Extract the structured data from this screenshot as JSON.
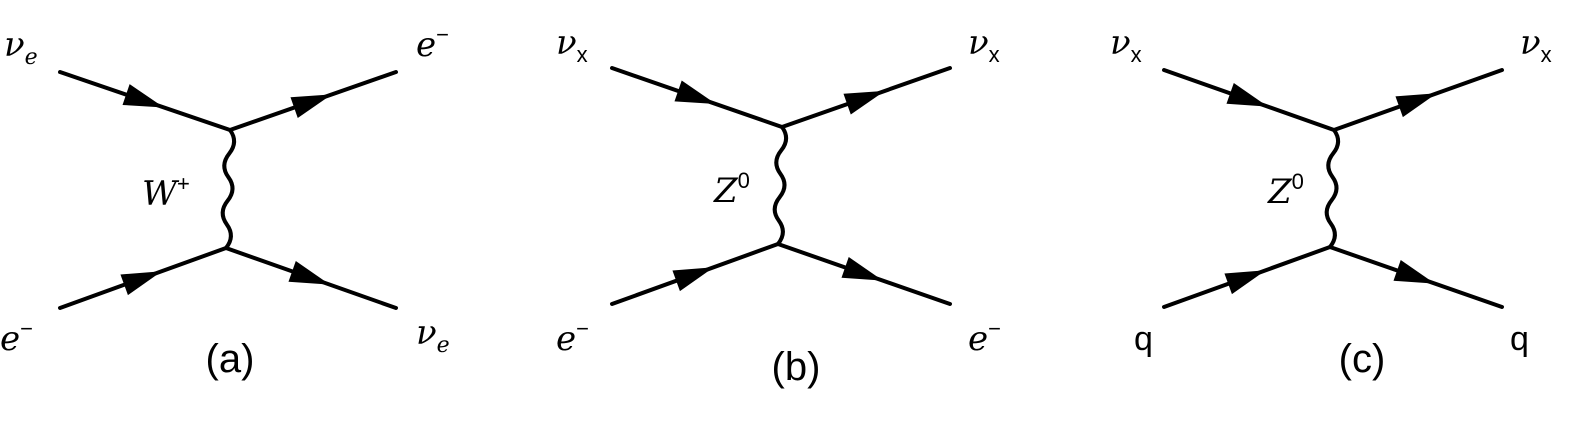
{
  "diagrams": [
    {
      "caption": "(a)",
      "boson": {
        "base": "W",
        "sup": "+"
      },
      "labels": {
        "top_left": {
          "base": "ν",
          "sub": "e",
          "sub_style": "italic"
        },
        "top_right": {
          "base": "e",
          "sup": "−"
        },
        "bottom_left": {
          "base": "e",
          "sup": "−"
        },
        "bottom_right": {
          "base": "ν",
          "sub": "e",
          "sub_style": "italic"
        }
      }
    },
    {
      "caption": "(b)",
      "boson": {
        "base": "Z",
        "sup": "0"
      },
      "labels": {
        "top_left": {
          "base": "ν",
          "sub": "x",
          "sub_style": "upright"
        },
        "top_right": {
          "base": "ν",
          "sub": "x",
          "sub_style": "upright"
        },
        "bottom_left": {
          "base": "e",
          "sup": "−"
        },
        "bottom_right": {
          "base": "e",
          "sup": "−"
        }
      }
    },
    {
      "caption": "(c)",
      "boson": {
        "base": "Z",
        "sup": "0"
      },
      "labels": {
        "top_left": {
          "base": "ν",
          "sub": "x",
          "sub_style": "upright"
        },
        "top_right": {
          "base": "ν",
          "sub": "x",
          "sub_style": "upright"
        },
        "bottom_left": {
          "base": "q",
          "style": "upright"
        },
        "bottom_right": {
          "base": "q",
          "style": "upright"
        }
      }
    }
  ]
}
